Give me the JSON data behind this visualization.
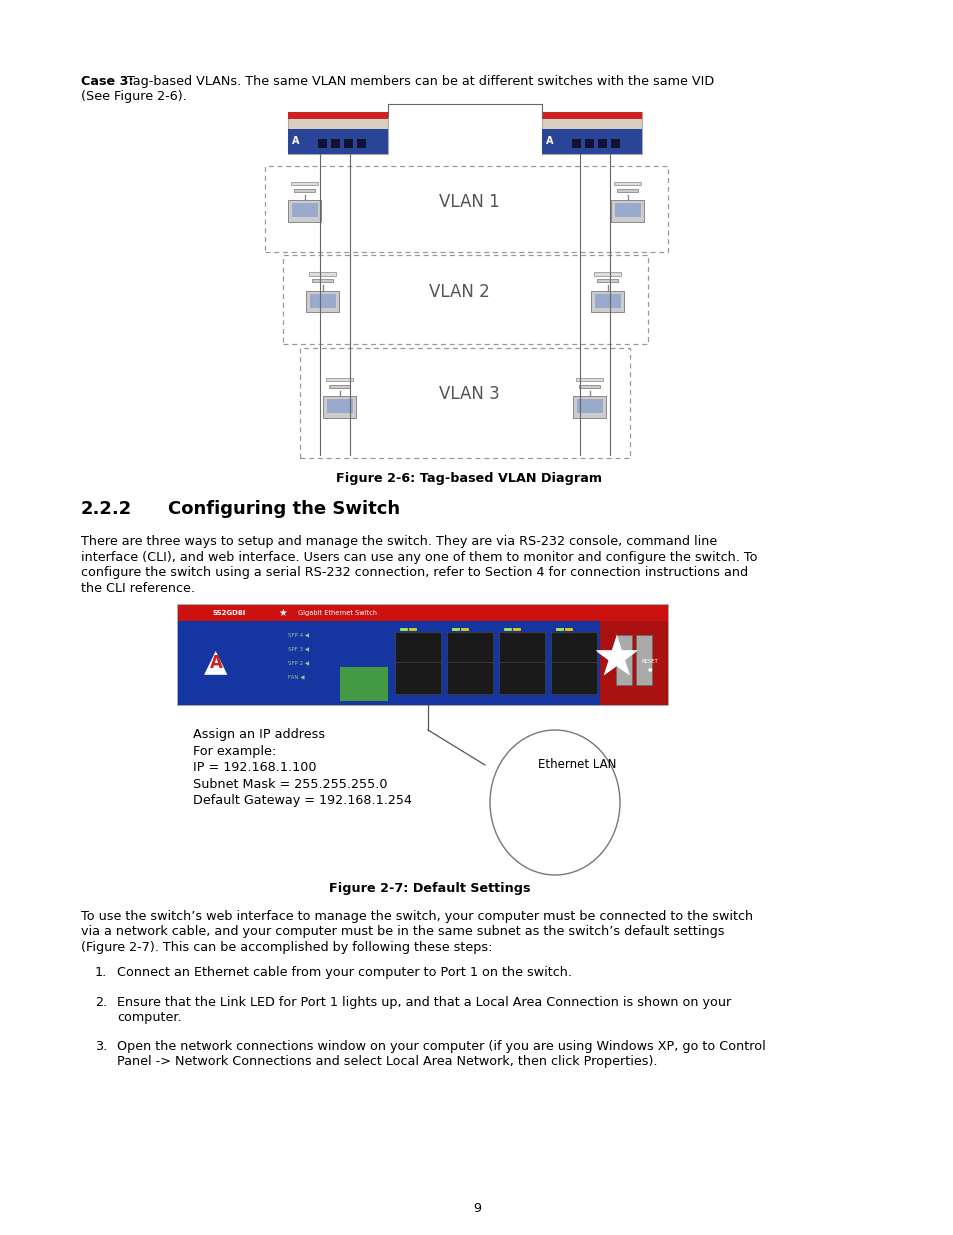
{
  "bg_color": "#ffffff",
  "page_number": "9",
  "case3_bold": "Case 3:",
  "fig6_caption": "Figure 2-6: Tag-based VLAN Diagram",
  "section_num": "2.2.2",
  "section_title": "Configuring the Switch",
  "para1_lines": [
    "There are three ways to setup and manage the switch. They are via RS-232 console, command line",
    "interface (CLI), and web interface. Users can use any one of them to monitor and configure the switch. To",
    "configure the switch using a serial RS-232 connection, refer to Section 4 for connection instructions and",
    "the CLI reference."
  ],
  "fig7_caption": "Figure 2-7: Default Settings",
  "para2_lines": [
    "To use the switch’s web interface to manage the switch, your computer must be connected to the switch",
    "via a network cable, and your computer must be in the same subnet as the switch’s default settings",
    "(Figure 2-7). This can be accomplished by following these steps:"
  ],
  "item1": "Connect an Ethernet cable from your computer to Port 1 on the switch.",
  "item2_lines": [
    "Ensure that the Link LED for Port 1 lights up, and that a Local Area Connection is shown on your",
    "computer."
  ],
  "item3_lines": [
    "Open the network connections window on your computer (if you are using Windows XP, go to Control",
    "Panel -> Network Connections and select Local Area Network, then click Properties)."
  ],
  "assign_lines": [
    "Assign an IP address",
    "For example:",
    "IP = 192.168.1.100",
    "Subnet Mask = 255.255.255.0",
    "Default Gateway = 192.168.1.254"
  ],
  "ethernet_lan_label": "Ethernet LAN",
  "vlan1_label": "VLAN 1",
  "vlan2_label": "VLAN 2",
  "vlan3_label": "VLAN 3",
  "text_color": "#000000",
  "font_size_body": 9.2,
  "font_size_section": 13.0,
  "font_size_caption": 9.2
}
